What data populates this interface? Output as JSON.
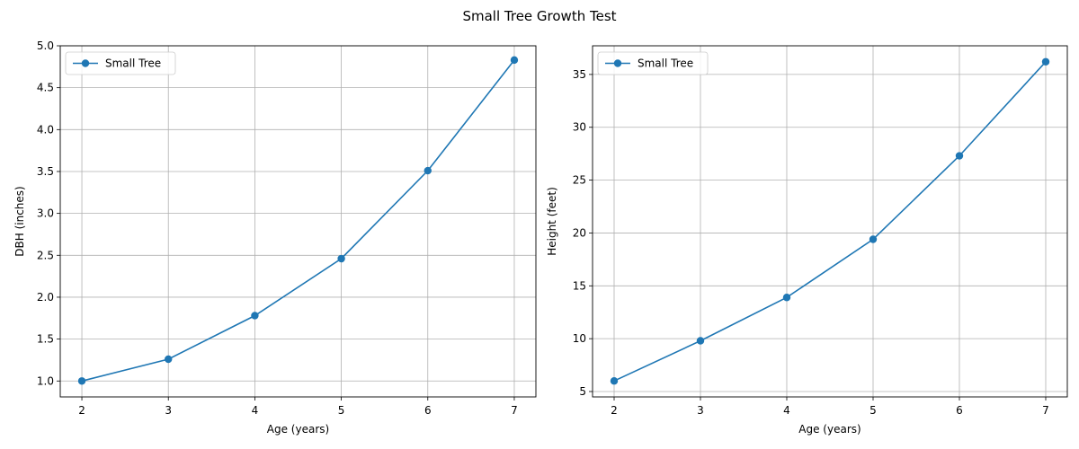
{
  "figure": {
    "title": "Small Tree Growth Test"
  },
  "chart_data": [
    {
      "type": "line",
      "x": [
        2,
        3,
        4,
        5,
        6,
        7
      ],
      "series": [
        {
          "name": "Small Tree",
          "values": [
            1.0,
            1.26,
            1.78,
            2.46,
            3.51,
            4.83
          ],
          "color": "#1f77b4"
        }
      ],
      "xlabel": "Age (years)",
      "ylabel": "DBH (inches)",
      "xlim": [
        1.75,
        7.25
      ],
      "ylim": [
        0.81,
        5.0
      ],
      "xticks": [
        2,
        3,
        4,
        5,
        6,
        7
      ],
      "yticks": [
        1.0,
        1.5,
        2.0,
        2.5,
        3.0,
        3.5,
        4.0,
        4.5,
        5.0
      ],
      "ytick_format": 1,
      "grid": true,
      "legend": "upper-left"
    },
    {
      "type": "line",
      "x": [
        2,
        3,
        4,
        5,
        6,
        7
      ],
      "series": [
        {
          "name": "Small Tree",
          "values": [
            6.0,
            9.8,
            13.9,
            19.4,
            27.3,
            36.2
          ],
          "color": "#1f77b4"
        }
      ],
      "xlabel": "Age (years)",
      "ylabel": "Height (feet)",
      "xlim": [
        1.75,
        7.25
      ],
      "ylim": [
        4.49,
        37.71
      ],
      "xticks": [
        2,
        3,
        4,
        5,
        6,
        7
      ],
      "yticks": [
        5,
        10,
        15,
        20,
        25,
        30,
        35
      ],
      "ytick_format": 0,
      "grid": true,
      "legend": "upper-left"
    }
  ]
}
